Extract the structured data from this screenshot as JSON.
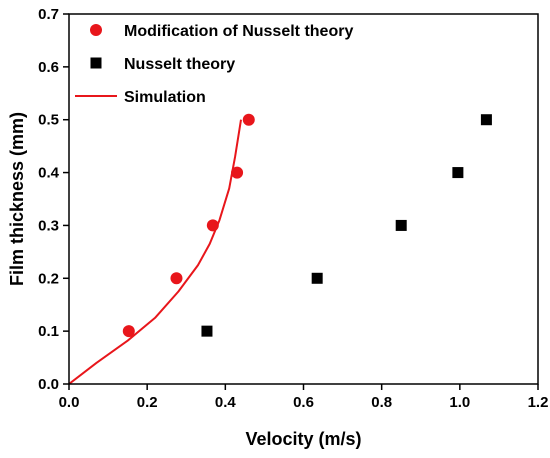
{
  "chart_data": {
    "type": "scatter",
    "xlabel": "Velocity (m/s)",
    "ylabel": "Film thickness (mm)",
    "xlim": [
      0.0,
      1.2
    ],
    "ylim": [
      0.0,
      0.7
    ],
    "xticks": [
      "0.0",
      "0.2",
      "0.4",
      "0.6",
      "0.8",
      "1.0",
      "1.2"
    ],
    "yticks": [
      "0.0",
      "0.1",
      "0.2",
      "0.3",
      "0.4",
      "0.5",
      "0.6",
      "0.7"
    ],
    "grid": false,
    "legend_position": "top-left",
    "series": [
      {
        "name": "Modification of Nusselt theory",
        "kind": "scatter",
        "marker": "circle",
        "color": "#e8161b",
        "x": [
          0.153,
          0.275,
          0.368,
          0.43,
          0.46
        ],
        "y": [
          0.1,
          0.2,
          0.3,
          0.4,
          0.5
        ]
      },
      {
        "name": "Nusselt theory",
        "kind": "scatter",
        "marker": "square",
        "color": "#000000",
        "x": [
          0.353,
          0.635,
          0.85,
          0.995,
          1.068
        ],
        "y": [
          0.1,
          0.2,
          0.3,
          0.4,
          0.5
        ]
      },
      {
        "name": "Simulation",
        "kind": "line",
        "color": "#e8161b",
        "x": [
          0.0,
          0.07,
          0.15,
          0.22,
          0.28,
          0.33,
          0.36,
          0.385,
          0.41,
          0.425,
          0.44
        ],
        "y": [
          0.0,
          0.04,
          0.082,
          0.125,
          0.175,
          0.225,
          0.265,
          0.31,
          0.37,
          0.43,
          0.5
        ]
      }
    ]
  }
}
